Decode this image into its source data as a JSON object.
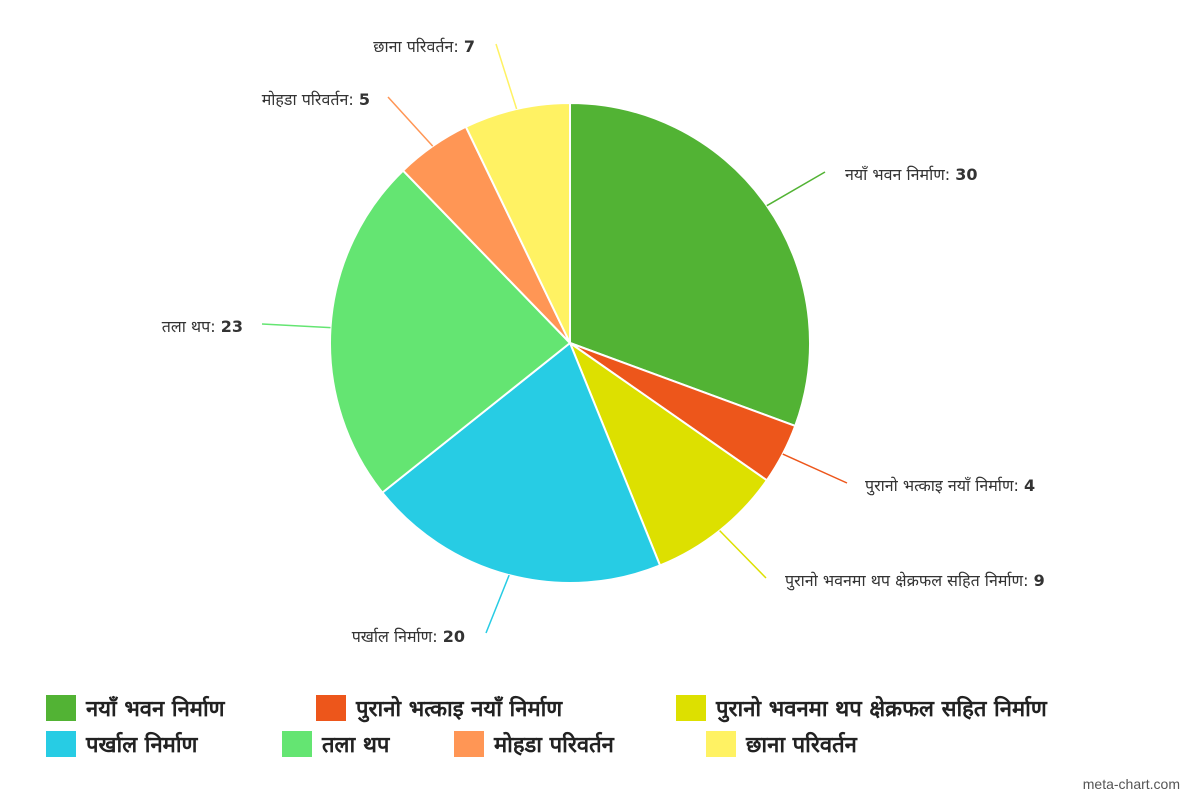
{
  "chart_data": {
    "type": "pie",
    "title": "",
    "slices": [
      {
        "label": "नयाँ भवन निर्माण",
        "value": 30,
        "color": "#52b334"
      },
      {
        "label": "पुरानो भत्काइ नयाँ निर्माण",
        "value": 4,
        "color": "#ed561b"
      },
      {
        "label": "पुरानो भवनमा थप क्षेक्रफल सहित निर्माण",
        "value": 9,
        "color": "#dde000"
      },
      {
        "label": "पर्खाल निर्माण",
        "value": 20,
        "color": "#27cce4"
      },
      {
        "label": "तला थप",
        "value": 23,
        "color": "#64e572"
      },
      {
        "label": "मोहडा परिवर्तन",
        "value": 5,
        "color": "#ff9655"
      },
      {
        "label": "छाना परिवर्तन",
        "value": 7,
        "color": "#fff263"
      }
    ],
    "legend_position": "bottom"
  },
  "credit": "meta-chart.com"
}
